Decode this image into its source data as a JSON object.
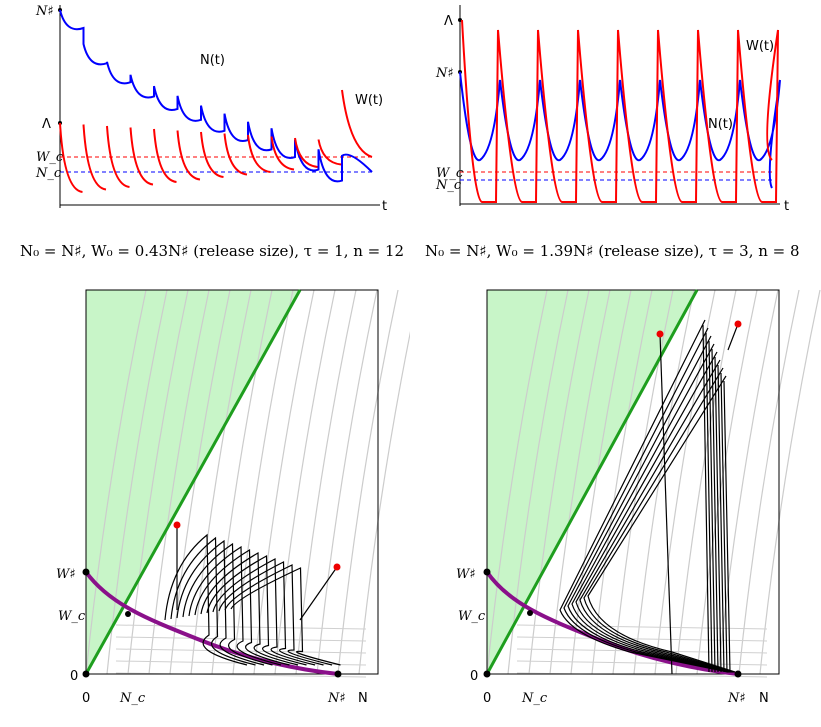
{
  "chart_data": [
    {
      "type": "line",
      "panel": "top-left",
      "caption": "N₀ = N♯, W₀ = 0.43N♯ (release size), τ = 1, n = 12",
      "xlabel": "t",
      "yticks": [
        "N♯",
        "Λ",
        "W_c",
        "N_c"
      ],
      "series": [
        {
          "name": "N(t)",
          "color": "#0000ff",
          "values": [
            1.0,
            0.79,
            0.68,
            0.6,
            0.53,
            0.47,
            0.41,
            0.36,
            0.31,
            0.27,
            0.2,
            0.14,
            0.1
          ]
        },
        {
          "name": "W(t)",
          "color": "#ff0000",
          "values": [
            0.43,
            0.43,
            0.43,
            0.43,
            0.43,
            0.43,
            0.43,
            0.43,
            0.43,
            0.43,
            0.43,
            0.43,
            0.05
          ]
        }
      ],
      "reference_lines": [
        {
          "name": "W_c",
          "color": "#ff0000",
          "style": "dashed"
        },
        {
          "name": "N_c",
          "color": "#0000ff",
          "style": "dashed"
        }
      ],
      "series_labels": {
        "n": "N(t)",
        "w": "W(t)"
      }
    },
    {
      "type": "line",
      "panel": "top-right",
      "caption": "N₀ = N♯, W₀ = 1.39N♯ (release size), τ = 3, n = 8",
      "xlabel": "t",
      "yticks": [
        "Λ",
        "N♯",
        "W_c",
        "N_c"
      ],
      "series": [
        {
          "name": "N(t)",
          "color": "#0000ff"
        },
        {
          "name": "W(t)",
          "color": "#ff0000"
        }
      ],
      "series_labels": {
        "n": "N(t)",
        "w": "W(t)"
      }
    },
    {
      "type": "line",
      "panel": "bottom-left",
      "xlabel": "N",
      "xticks": [
        "0",
        "N_c",
        "N♯"
      ],
      "yticks": [
        "0",
        "W_c",
        "W♯"
      ],
      "region_color": "#c8f5c8",
      "boundary_color": "#1e9e1e",
      "nullcline_color": "#8a108a",
      "trajectory_color": "#000000",
      "n_trajectory_jumps": 12
    },
    {
      "type": "line",
      "panel": "bottom-right",
      "xlabel": "N",
      "xticks": [
        "0",
        "N_c",
        "N♯"
      ],
      "yticks": [
        "0",
        "W_c",
        "W♯"
      ],
      "region_color": "#c8f5c8",
      "boundary_color": "#1e9e1e",
      "nullcline_color": "#8a108a",
      "trajectory_color": "#000000",
      "n_trajectory_jumps": 8
    }
  ],
  "labels": {
    "caption_left": "N₀ = N♯, W₀ = 0.43N♯ (release size), τ = 1, n = 12",
    "caption_right": "N₀ = N♯, W₀ = 1.39N♯ (release size), τ = 3, n = 8"
  }
}
